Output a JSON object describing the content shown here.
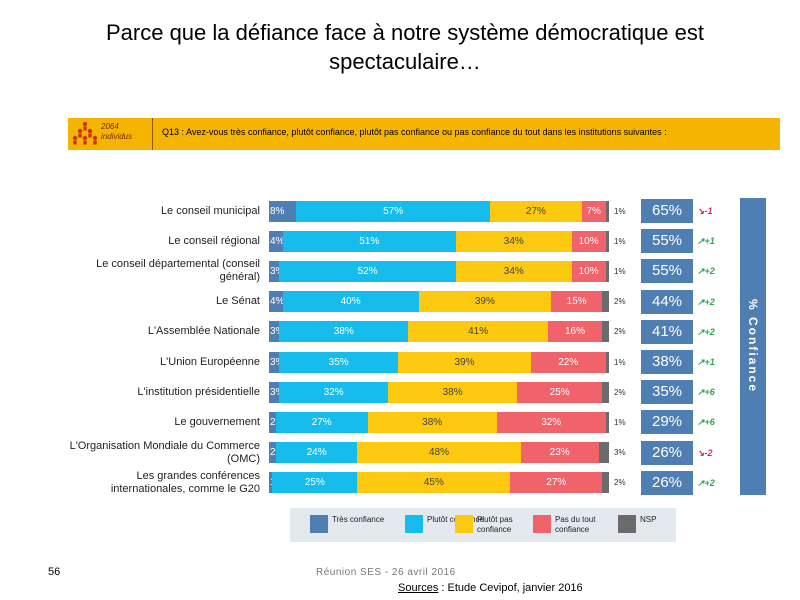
{
  "title": "Parce que la défiance face à notre système démocratique est spectaculaire…",
  "logo": {
    "line1": "2064",
    "line2": "individus"
  },
  "question": "Q13 : Avez-vous très confiance, plutôt confiance, plutôt pas confiance ou pas confiance du tout dans les institutions suivantes :",
  "side_label": "% Confiance",
  "colors": {
    "tres": "#4f7eb2",
    "plutot": "#16bdec",
    "plutot_pas": "#fcc810",
    "pas_du_tout": "#f0636a",
    "nsp": "#6b6b6b",
    "box": "#4f7eb2"
  },
  "legend": [
    {
      "key": "tres",
      "label": "Très confiance"
    },
    {
      "key": "plutot",
      "label": "Plutôt confiance"
    },
    {
      "key": "plutot_pas",
      "label": "Plutôt pas confiance"
    },
    {
      "key": "pas_du_tout",
      "label": "Pas du tout confiance"
    },
    {
      "key": "nsp",
      "label": "NSP"
    }
  ],
  "chart_data": {
    "type": "bar",
    "orientation": "horizontal",
    "stacked": true,
    "categories": [
      "Le conseil municipal",
      "Le conseil régional",
      "Le conseil départemental (conseil général)",
      "Le Sénat",
      "L'Assemblée Nationale",
      "L'Union Européenne",
      "L'institution présidentielle",
      "Le gouvernement",
      "L'Organisation Mondiale du Commerce (OMC)",
      "Les grandes conférences internationales, comme le G20"
    ],
    "series": [
      {
        "name": "Très confiance",
        "values": [
          8,
          4,
          3,
          4,
          3,
          3,
          3,
          2,
          2,
          1
        ]
      },
      {
        "name": "Plutôt confiance",
        "values": [
          57,
          51,
          52,
          40,
          38,
          35,
          32,
          27,
          24,
          25
        ]
      },
      {
        "name": "Plutôt pas confiance",
        "values": [
          27,
          34,
          34,
          39,
          41,
          39,
          38,
          38,
          48,
          45
        ]
      },
      {
        "name": "Pas du tout confiance",
        "values": [
          7,
          10,
          10,
          15,
          16,
          22,
          25,
          32,
          23,
          27
        ]
      },
      {
        "name": "NSP",
        "values": [
          1,
          1,
          1,
          2,
          2,
          1,
          2,
          1,
          3,
          2
        ]
      }
    ],
    "confiance_pct": [
      65,
      55,
      55,
      44,
      41,
      38,
      35,
      29,
      26,
      26
    ],
    "evolution": [
      "-1",
      "+1",
      "+2",
      "+2",
      "+2",
      "+1",
      "+6",
      "+6",
      "-2",
      "+2"
    ],
    "xlim": [
      0,
      100
    ]
  },
  "footer": {
    "page": "56",
    "meeting": "Réunion SES - 26 avril 2016",
    "sources_label": "Sources",
    "sources_text": " : Etude Cevipof, janvier 2016"
  }
}
